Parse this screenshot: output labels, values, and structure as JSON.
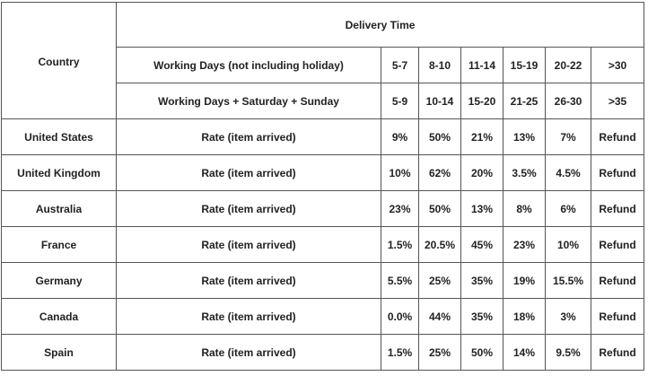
{
  "table": {
    "country_header": "Country",
    "delivery_header": "Delivery Time",
    "working_days_label": "Working Days (not including holiday)",
    "working_days_ranges": [
      "5-7",
      "8-10",
      "11-14",
      "15-19",
      "20-22",
      ">30"
    ],
    "calendar_days_label": "Working Days + Saturday + Sunday",
    "calendar_days_ranges": [
      "5-9",
      "10-14",
      "15-20",
      "21-25",
      "26-30",
      ">35"
    ],
    "rows": [
      {
        "country": "United States",
        "metric": "Rate (item arrived)",
        "values": [
          "9%",
          "50%",
          "21%",
          "13%",
          "7%",
          "Refund"
        ]
      },
      {
        "country": "United Kingdom",
        "metric": "Rate (item arrived)",
        "values": [
          "10%",
          "62%",
          "20%",
          "3.5%",
          "4.5%",
          "Refund"
        ]
      },
      {
        "country": "Australia",
        "metric": "Rate (item arrived)",
        "values": [
          "23%",
          "50%",
          "13%",
          "8%",
          "6%",
          "Refund"
        ]
      },
      {
        "country": "France",
        "metric": "Rate (item arrived)",
        "values": [
          "1.5%",
          "20.5%",
          "45%",
          "23%",
          "10%",
          "Refund"
        ]
      },
      {
        "country": "Germany",
        "metric": "Rate (item arrived)",
        "values": [
          "5.5%",
          "25%",
          "35%",
          "19%",
          "15.5%",
          "Refund"
        ]
      },
      {
        "country": "Canada",
        "metric": "Rate (item arrived)",
        "values": [
          "0.0%",
          "44%",
          "35%",
          "18%",
          "3%",
          "Refund"
        ]
      },
      {
        "country": "Spain",
        "metric": "Rate (item arrived)",
        "values": [
          "1.5%",
          "25%",
          "50%",
          "14%",
          "9.5%",
          "Refund"
        ]
      }
    ]
  }
}
